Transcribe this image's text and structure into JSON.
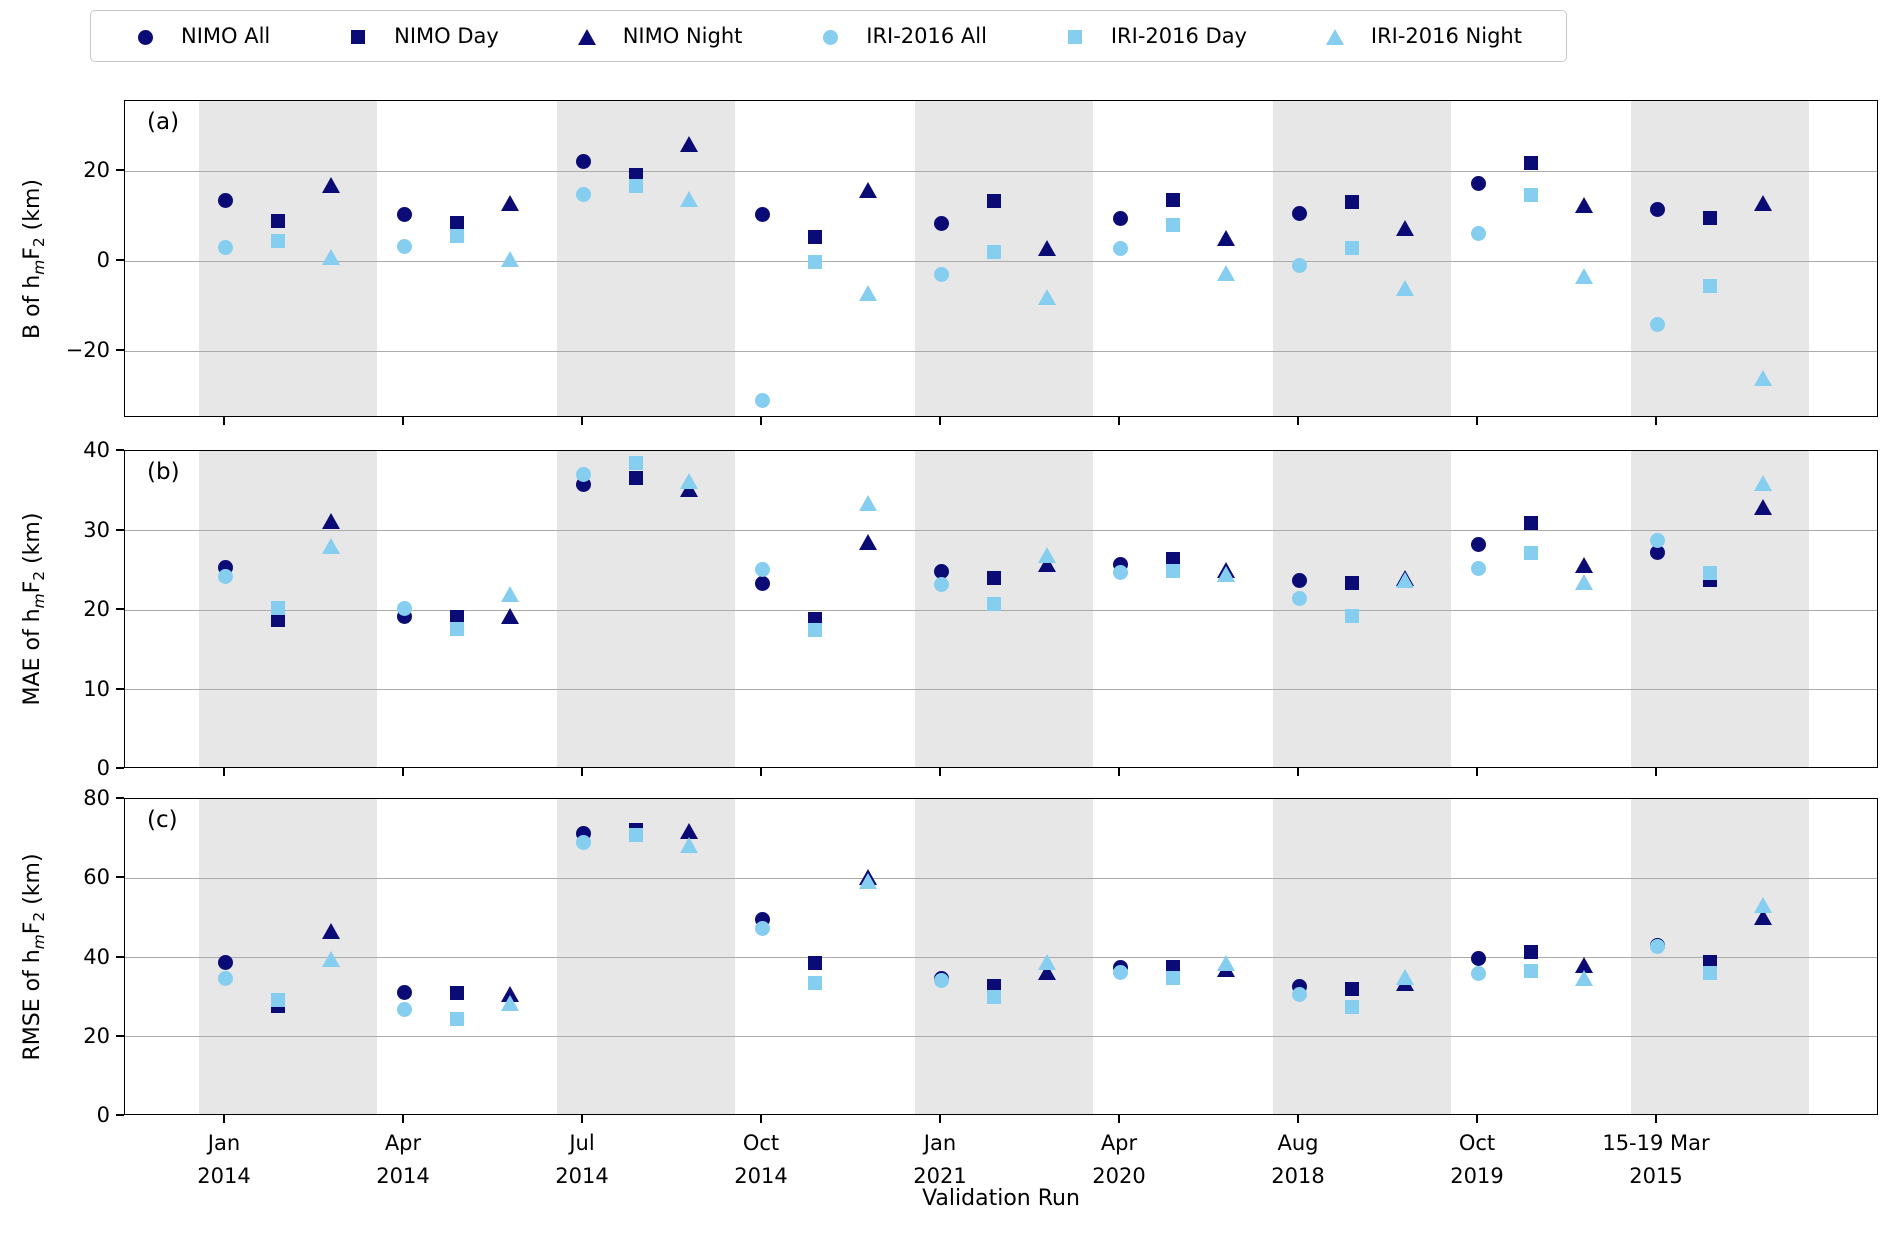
{
  "legend": {
    "items": [
      {
        "label": "NIMO All",
        "marker": "circle",
        "color": "#0b0b75"
      },
      {
        "label": "NIMO Day",
        "marker": "square",
        "color": "#0b0b75"
      },
      {
        "label": "NIMO Night",
        "marker": "triangle",
        "color": "#0b0b75"
      },
      {
        "label": "IRI-2016 All",
        "marker": "circle",
        "color": "#86ceef"
      },
      {
        "label": "IRI-2016 Day",
        "marker": "square",
        "color": "#86ceef"
      },
      {
        "label": "IRI-2016 Night",
        "marker": "triangle",
        "color": "#86ceef"
      }
    ]
  },
  "chart_data": {
    "type": "scatter",
    "xlabel": "Validation Run",
    "legend_position": "top",
    "grid": "horizontal",
    "band_color": "#e7e7e7",
    "colors": {
      "nimo": "#0b0b75",
      "iri": "#86ceef"
    },
    "categories": [
      "Jan 2014",
      "Apr 2014",
      "Jul 2014",
      "Oct 2014",
      "Jan 2021",
      "Apr 2020",
      "Aug 2018",
      "Oct 2019",
      "15-19 Mar 2015"
    ],
    "x_tick_lines": [
      [
        "Jan",
        "2014"
      ],
      [
        "Apr",
        "2014"
      ],
      [
        "Jul",
        "2014"
      ],
      [
        "Oct",
        "2014"
      ],
      [
        "Jan",
        "2021"
      ],
      [
        "Apr",
        "2020"
      ],
      [
        "Aug",
        "2018"
      ],
      [
        "Oct",
        "2019"
      ],
      [
        "15-19 Mar",
        "2015"
      ]
    ],
    "panels": [
      {
        "letter": "(a)",
        "ylabel": "B of hmF2 (km)",
        "ylabel_prefix": "B of",
        "ylabel_suffix": "(km)",
        "ylim": [
          -34.9,
          35.6
        ],
        "yticks": [
          20,
          0,
          -20
        ],
        "inner_gridlines": [
          20,
          0,
          -20
        ],
        "series": [
          {
            "name": "NIMO All",
            "values": [
              13.4,
              10.4,
              22.1,
              10.4,
              8.3,
              9.4,
              10.5,
              17.2,
              11.5
            ]
          },
          {
            "name": "NIMO Day",
            "values": [
              9.0,
              8.4,
              19.1,
              5.4,
              13.4,
              13.5,
              13.1,
              21.8,
              9.6
            ]
          },
          {
            "name": "NIMO Night",
            "values": [
              16.9,
              12.9,
              26.0,
              15.8,
              2.8,
              5.2,
              7.4,
              12.4,
              12.9
            ]
          },
          {
            "name": "IRI-2016 All",
            "values": [
              3.0,
              3.3,
              14.7,
              -31.0,
              -2.9,
              2.8,
              -1.0,
              6.1,
              -14.0
            ]
          },
          {
            "name": "IRI-2016 Day",
            "values": [
              4.4,
              5.6,
              16.6,
              -0.3,
              2.1,
              8.0,
              3.0,
              14.8,
              -5.6
            ]
          },
          {
            "name": "IRI-2016 Night",
            "values": [
              0.8,
              0.5,
              13.9,
              -7.2,
              -8.1,
              -2.7,
              -5.9,
              -3.4,
              -26.0
            ]
          }
        ]
      },
      {
        "letter": "(b)",
        "ylabel": "MAE of hmF2 (km)",
        "ylabel_prefix": "MAE of",
        "ylabel_suffix": "(km)",
        "ylim": [
          0,
          40
        ],
        "yticks": [
          40,
          30,
          20,
          10,
          0
        ],
        "inner_gridlines": [
          30,
          20,
          10
        ],
        "series": [
          {
            "name": "NIMO All",
            "values": [
              25.3,
              19.2,
              35.8,
              23.3,
              24.9,
              25.7,
              23.7,
              28.3,
              27.2
            ]
          },
          {
            "name": "NIMO Day",
            "values": [
              18.8,
              19.1,
              36.6,
              18.9,
              24.0,
              26.4,
              23.4,
              31.0,
              23.8
            ]
          },
          {
            "name": "NIMO Night",
            "values": [
              31.2,
              19.3,
              35.2,
              28.5,
              25.8,
              25.0,
              24.0,
              25.6,
              32.9
            ]
          },
          {
            "name": "IRI-2016 All",
            "values": [
              24.2,
              20.2,
              37.0,
              25.1,
              23.2,
              24.7,
              21.4,
              25.2,
              28.8
            ]
          },
          {
            "name": "IRI-2016 Day",
            "values": [
              20.3,
              17.6,
              38.5,
              17.5,
              20.7,
              24.9,
              19.2,
              27.2,
              24.6
            ]
          },
          {
            "name": "IRI-2016 Night",
            "values": [
              28.0,
              22.0,
              36.2,
              33.5,
              26.9,
              24.5,
              23.8,
              23.5,
              36.0
            ]
          }
        ]
      },
      {
        "letter": "(c)",
        "ylabel": "RMSE of hmF2 (km)",
        "ylabel_prefix": "RMSE of",
        "ylabel_suffix": "(km)",
        "ylim": [
          0,
          80
        ],
        "yticks": [
          80,
          60,
          40,
          20,
          0
        ],
        "inner_gridlines": [
          60,
          40,
          20
        ],
        "series": [
          {
            "name": "NIMO All",
            "values": [
              38.8,
              31.2,
              71.2,
              49.6,
              34.6,
              37.4,
              32.7,
              39.7,
              43.0
            ]
          },
          {
            "name": "NIMO Day",
            "values": [
              27.8,
              31.1,
              72.3,
              38.6,
              32.8,
              37.5,
              32.0,
              41.4,
              38.8
            ]
          },
          {
            "name": "NIMO Night",
            "values": [
              46.8,
              30.9,
              72.0,
              60.2,
              36.3,
              37.0,
              33.6,
              38.2,
              50.3
            ]
          },
          {
            "name": "IRI-2016 All",
            "values": [
              34.6,
              26.8,
              69.0,
              47.3,
              34.3,
              36.3,
              30.7,
              36.0,
              42.8
            ]
          },
          {
            "name": "IRI-2016 Day",
            "values": [
              29.2,
              24.4,
              70.8,
              33.6,
              30.0,
              34.8,
              27.5,
              36.7,
              36.1
            ]
          },
          {
            "name": "IRI-2016 Night",
            "values": [
              39.7,
              28.6,
              68.5,
              59.4,
              38.9,
              38.6,
              35.1,
              34.9,
              53.2
            ]
          }
        ]
      }
    ],
    "formula": {
      "base": "h",
      "sub": "m",
      "base2": "F",
      "sub2": "2"
    }
  }
}
